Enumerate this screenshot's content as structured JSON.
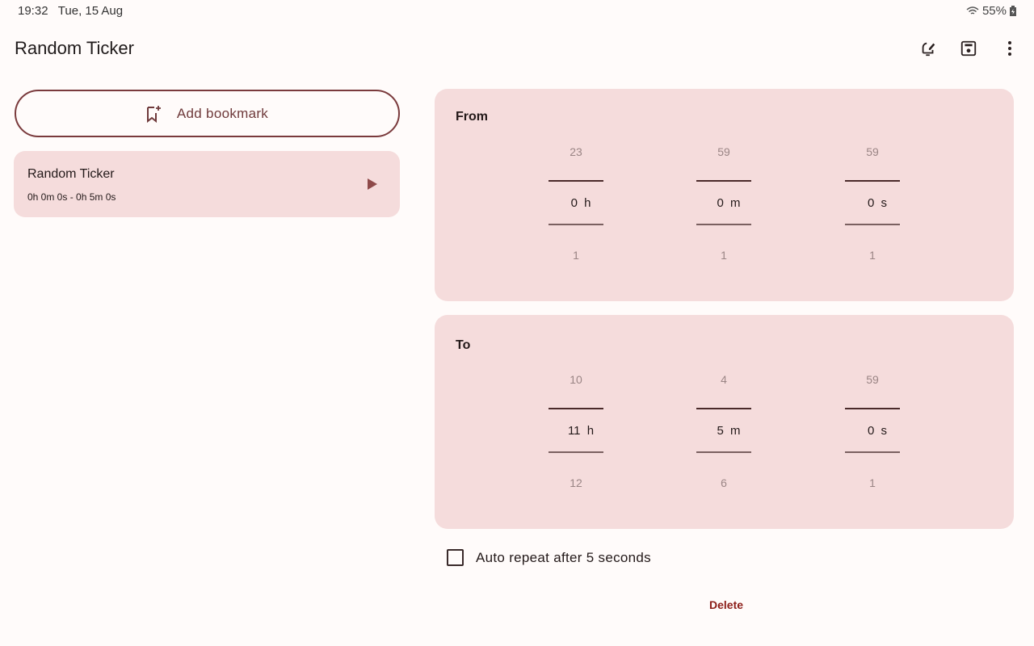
{
  "status_bar": {
    "time": "19:32",
    "date": "Tue, 15 Aug",
    "battery": "55%",
    "icons": [
      "wifi-icon",
      "battery-charging-icon"
    ]
  },
  "app_bar": {
    "title": "Random Ticker",
    "actions": [
      "alarm-edit-icon",
      "save-icon",
      "more-vert-icon"
    ]
  },
  "add_bookmark": {
    "label": "Add bookmark",
    "icon": "bookmark-add-icon"
  },
  "bookmarks": [
    {
      "title": "Random Ticker",
      "range": "0h 0m 0s - 0h 5m 0s",
      "icon": "play-icon"
    }
  ],
  "from": {
    "label": "From",
    "pickers": [
      {
        "name": "hours",
        "prev": "23",
        "value": "0 h",
        "next": "1"
      },
      {
        "name": "minutes",
        "prev": "59",
        "value": "0 m",
        "next": "1"
      },
      {
        "name": "seconds",
        "prev": "59",
        "value": "0 s",
        "next": "1"
      }
    ]
  },
  "to": {
    "label": "To",
    "pickers": [
      {
        "name": "hours",
        "prev": "10",
        "value": "11 h",
        "next": "12"
      },
      {
        "name": "minutes",
        "prev": "4",
        "value": "5 m",
        "next": "6"
      },
      {
        "name": "seconds",
        "prev": "59",
        "value": "0 s",
        "next": "1"
      }
    ]
  },
  "auto_repeat": {
    "label": "Auto repeat after 5 seconds",
    "checked": false
  },
  "delete_label": "Delete",
  "colors": {
    "background": "#fffbfa",
    "surface": "#f5dcdc",
    "accent": "#7a3a3c",
    "danger": "#8c1d18"
  }
}
